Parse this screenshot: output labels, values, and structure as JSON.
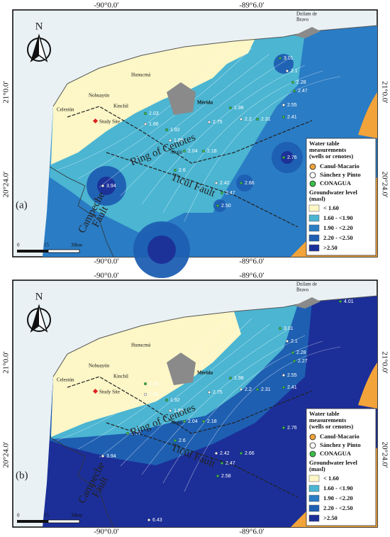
{
  "coords": {
    "lon": [
      "-90°0.0′",
      "-89°6.0′"
    ],
    "lat": [
      "21°0.0′",
      "20°24.0′"
    ]
  },
  "places": {
    "dzilam": [
      "Dzilam de",
      "Bravo"
    ],
    "merida": "Mérida",
    "celestun": "Celestún",
    "study_site": "Study Site",
    "nohuayun": "Nohuayún",
    "hunucma": "Hunucmá",
    "kinchil": "Kinchil",
    "abala": "Abalá",
    "ring": "Ring of Cenotes",
    "ticul": "Ticul Fault",
    "campeche": [
      "Campeche",
      "Fault"
    ]
  },
  "scale": [
    "0",
    "15",
    "30km"
  ],
  "north": "N",
  "legend": {
    "title": [
      "Water table",
      "measurements",
      "(wells or cenotes)"
    ],
    "sources": [
      "Canul-Macario",
      "Sánchez y Pinto",
      "CONAGUA"
    ],
    "level_title": [
      "Groundwater level",
      "(masl)"
    ],
    "levels": [
      "< 1.60",
      "1.60 - <1.90",
      "1.90 - <2.20",
      "2.20 - <2.50",
      ">2.50"
    ]
  },
  "panels": [
    {
      "label": "(a)",
      "wells": [
        "3.94",
        "2.76",
        "2.66",
        "2.42",
        "2.47",
        "2.50",
        "2.2",
        "2.31",
        "2.41",
        "2.55",
        "2.28",
        "2.47",
        "2.1",
        "3.01",
        "1.98",
        "2.75",
        "2.18",
        "2.04",
        "1.99",
        "2.03",
        "1.92",
        "1.86",
        "2.6"
      ]
    },
    {
      "label": "(b)",
      "wells": [
        "3.94",
        "2.76",
        "2.66",
        "2.42",
        "2.47",
        "2.58",
        "2.2",
        "2.31",
        "2.41",
        "2.55",
        "2.28",
        "2.27",
        "2.1",
        "3.01",
        "1.98",
        "2.75",
        "2.18",
        "2.04",
        "1.99",
        "2.03",
        "1.92",
        "1.86",
        "2.6",
        "1.77",
        "6.43",
        "4.01"
      ]
    }
  ]
}
